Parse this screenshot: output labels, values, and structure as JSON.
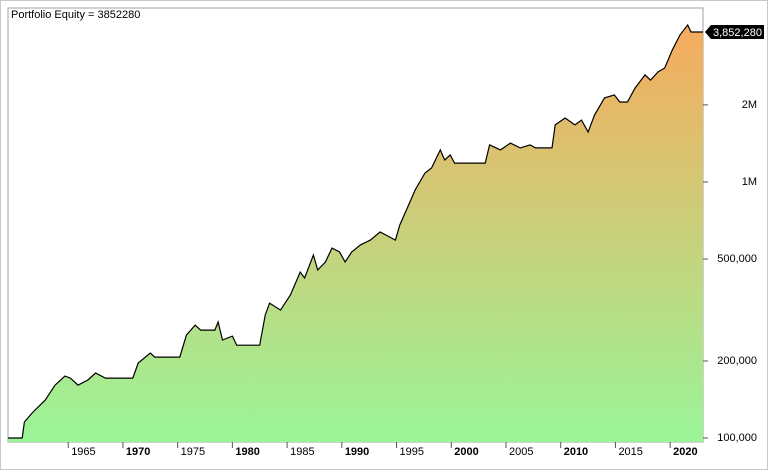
{
  "chart_data": {
    "type": "area",
    "title": "Portfolio Equity = 3852280",
    "log_scale": true,
    "fill_gradient": [
      "#9af598",
      "#f7ab5e"
    ],
    "xlim": [
      1959.5,
      2023.0
    ],
    "xticks": [
      1965,
      1970,
      1975,
      1980,
      1985,
      1990,
      1995,
      2000,
      2005,
      2010,
      2015,
      2020
    ],
    "ylim": [
      96500,
      4780000
    ],
    "yticks": [
      {
        "value": 100000,
        "label": "100,000"
      },
      {
        "value": 200000,
        "label": "200,000"
      },
      {
        "value": 500000,
        "label": "500,000"
      },
      {
        "value": 1000000,
        "label": "1M"
      },
      {
        "value": 2000000,
        "label": "2M"
      }
    ],
    "last_label": {
      "value": 3852280,
      "label": "3,852,280"
    },
    "series": [
      {
        "name": "Portfolio Equity",
        "color": "#000000",
        "x": [
          1959.5,
          1960.8,
          1961.0,
          1961.7,
          1962.9,
          1963.8,
          1964.7,
          1965.2,
          1965.9,
          1966.8,
          1967.5,
          1968.4,
          1970.9,
          1971.4,
          1972.5,
          1972.9,
          1975.2,
          1975.8,
          1976.6,
          1977.1,
          1978.4,
          1978.7,
          1979.1,
          1980.0,
          1980.4,
          1982.5,
          1983.0,
          1983.4,
          1984.4,
          1985.3,
          1986.2,
          1986.6,
          1987.4,
          1987.8,
          1988.5,
          1989.1,
          1989.8,
          1990.3,
          1990.9,
          1991.7,
          1992.6,
          1993.5,
          1994.2,
          1994.9,
          1995.3,
          1996.1,
          1996.7,
          1997.6,
          1998.2,
          1999.0,
          1999.4,
          1999.9,
          2000.3,
          2003.1,
          2003.5,
          2004.5,
          2005.4,
          2006.3,
          2007.2,
          2007.7,
          2009.2,
          2009.5,
          2010.4,
          2011.3,
          2011.9,
          2012.5,
          2013.1,
          2014.0,
          2014.9,
          2015.4,
          2016.1,
          2016.8,
          2017.7,
          2018.2,
          2018.9,
          2019.5,
          2020.2,
          2020.9,
          2021.6,
          2021.9,
          2023.0
        ],
        "values": [
          100000,
          100000,
          115500,
          125200,
          140700,
          161000,
          174600,
          171400,
          161000,
          168500,
          179500,
          171400,
          171400,
          196300,
          214800,
          207000,
          207000,
          252400,
          276000,
          264000,
          264000,
          284000,
          241500,
          250000,
          230500,
          230500,
          302000,
          336500,
          316000,
          362000,
          444700,
          421700,
          518600,
          453000,
          487000,
          552000,
          533000,
          487000,
          533000,
          568000,
          593000,
          638000,
          615000,
          593000,
          679000,
          813000,
          930000,
          1084000,
          1135000,
          1334000,
          1219000,
          1274000,
          1185000,
          1185000,
          1396000,
          1334000,
          1419000,
          1358000,
          1396000,
          1358000,
          1358000,
          1671000,
          1778000,
          1671000,
          1745000,
          1567000,
          1828000,
          2130000,
          2188000,
          2053000,
          2053000,
          2328000,
          2618000,
          2500000,
          2692000,
          2787000,
          3281000,
          3753000,
          4103000,
          3852280,
          3852280
        ]
      }
    ]
  }
}
